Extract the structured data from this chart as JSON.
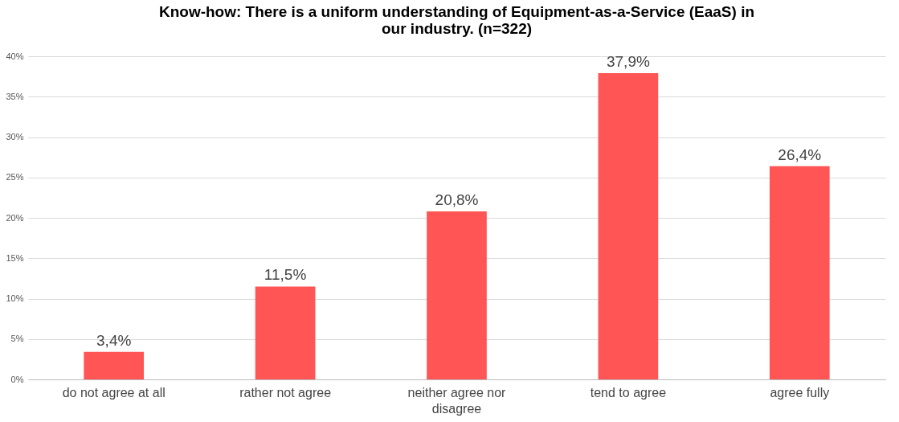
{
  "chart_data": {
    "type": "bar",
    "title": "Know-how: There is a uniform understanding of Equipment-as-a-Service (EaaS) in our industry. (n=322)",
    "categories": [
      "do not agree at all",
      "rather not agree",
      "neither agree nor disagree",
      "tend to agree",
      "agree fully"
    ],
    "values": [
      3.4,
      11.5,
      20.8,
      37.9,
      26.4
    ],
    "value_labels": [
      "3,4%",
      "11,5%",
      "20,8%",
      "37,9%",
      "26,4%"
    ],
    "color": "#ff5555",
    "ylim": [
      0,
      40
    ],
    "yticks": [
      {
        "value": 0,
        "label": "0%"
      },
      {
        "value": 5,
        "label": "5%"
      },
      {
        "value": 10,
        "label": "10%"
      },
      {
        "value": 15,
        "label": "15%"
      },
      {
        "value": 20,
        "label": "20%"
      },
      {
        "value": 25,
        "label": "25%"
      },
      {
        "value": 30,
        "label": "30%"
      },
      {
        "value": 35,
        "label": "35%"
      },
      {
        "value": 40,
        "label": "40%"
      }
    ],
    "grid": "y"
  }
}
